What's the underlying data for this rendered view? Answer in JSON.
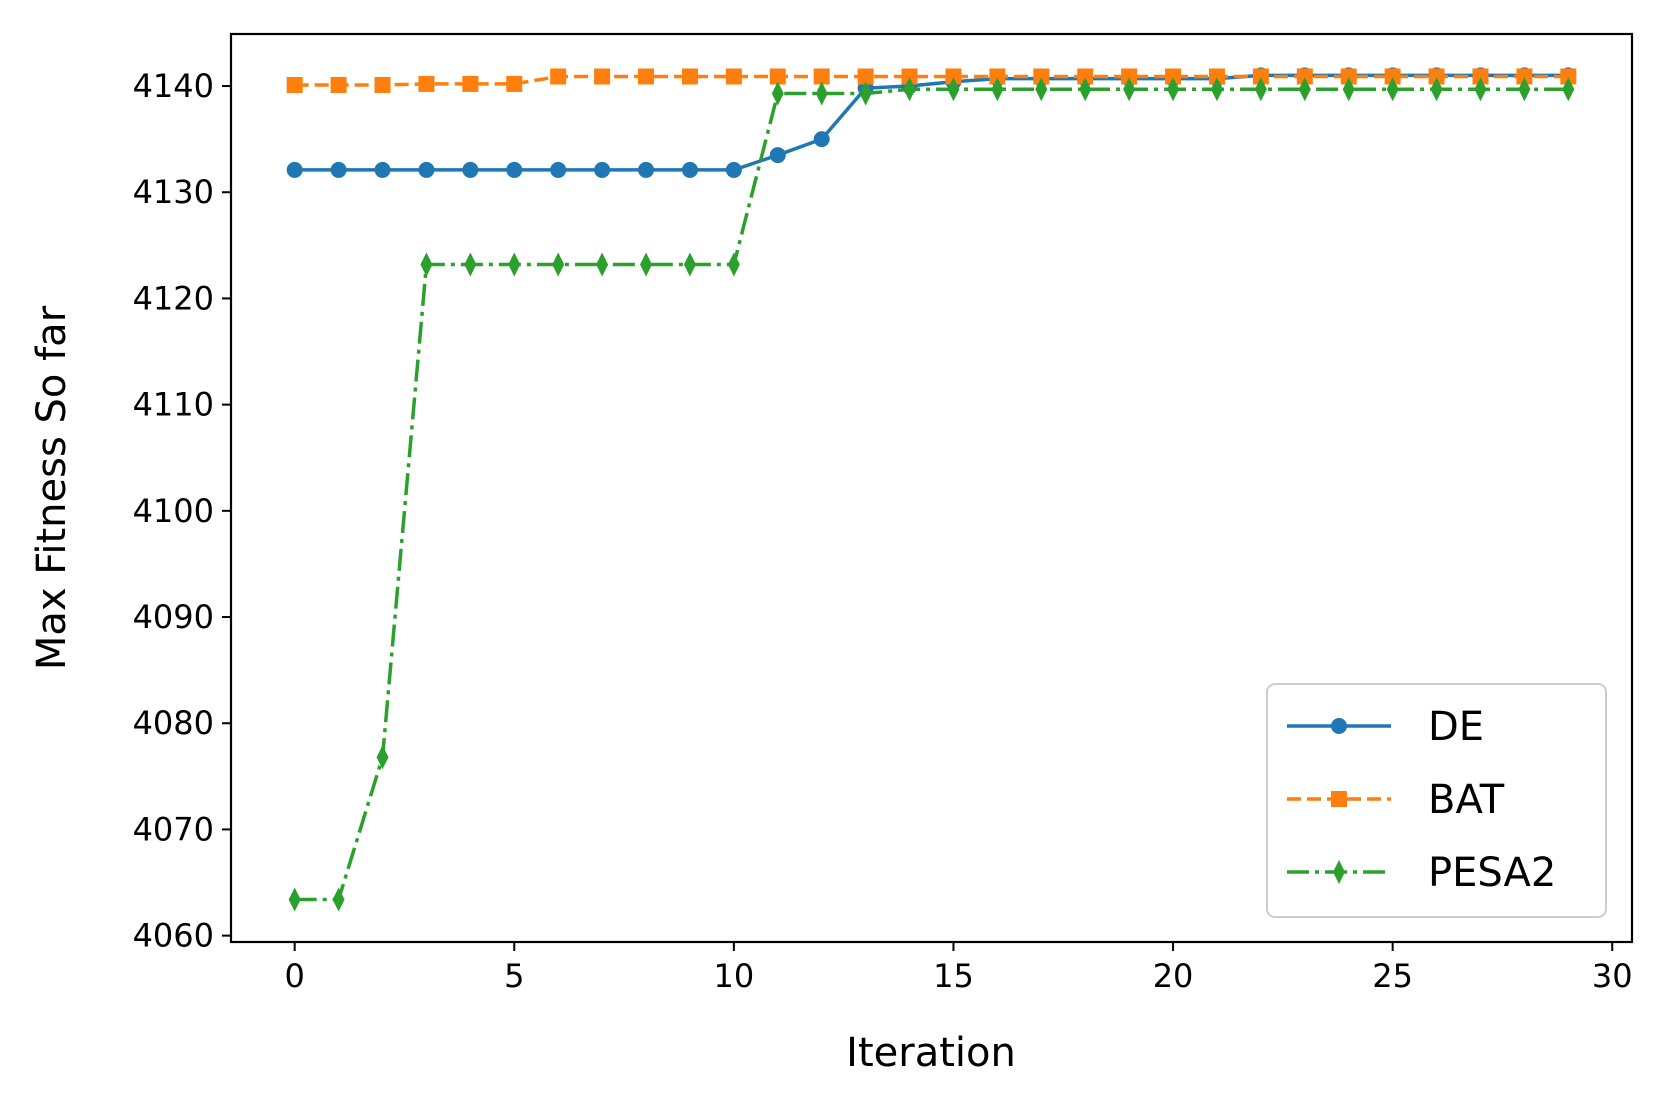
{
  "chart_data": {
    "type": "line",
    "title": "",
    "xlabel": "Iteration",
    "ylabel": "Max Fitness So far",
    "xlim": [
      -1.45,
      30.45
    ],
    "ylim": [
      4059.4,
      4144.9
    ],
    "xticks": [
      0,
      5,
      10,
      15,
      20,
      25,
      30
    ],
    "yticks": [
      4060,
      4070,
      4080,
      4090,
      4100,
      4110,
      4120,
      4130,
      4140
    ],
    "legend_position": "lower-right",
    "x": [
      0,
      1,
      2,
      3,
      4,
      5,
      6,
      7,
      8,
      9,
      10,
      11,
      12,
      13,
      14,
      15,
      16,
      17,
      18,
      19,
      20,
      21,
      22,
      23,
      24,
      25,
      26,
      27,
      28,
      29
    ],
    "series": [
      {
        "name": "DE",
        "color": "#1f77b4",
        "marker": "circle",
        "linestyle": "solid",
        "values": [
          4132.1,
          4132.1,
          4132.1,
          4132.1,
          4132.1,
          4132.1,
          4132.1,
          4132.1,
          4132.1,
          4132.1,
          4132.1,
          4133.5,
          4135.0,
          4139.8,
          4140.0,
          4140.4,
          4140.7,
          4140.7,
          4140.7,
          4140.7,
          4140.7,
          4140.7,
          4141.0,
          4141.0,
          4141.0,
          4141.0,
          4141.0,
          4141.0,
          4141.0,
          4141.0
        ]
      },
      {
        "name": "BAT",
        "color": "#ff7f0e",
        "marker": "square",
        "linestyle": "dashed",
        "values": [
          4140.1,
          4140.1,
          4140.1,
          4140.2,
          4140.2,
          4140.2,
          4140.9,
          4140.9,
          4140.9,
          4140.9,
          4140.9,
          4140.9,
          4140.9,
          4140.9,
          4140.9,
          4140.9,
          4140.9,
          4140.9,
          4140.9,
          4140.9,
          4140.9,
          4140.9,
          4140.9,
          4140.9,
          4140.9,
          4140.9,
          4140.9,
          4140.9,
          4140.9,
          4140.9
        ]
      },
      {
        "name": "PESA2",
        "color": "#2ca02c",
        "marker": "thin-diamond",
        "linestyle": "dashdot",
        "values": [
          4063.4,
          4063.4,
          4076.8,
          4123.2,
          4123.2,
          4123.2,
          4123.2,
          4123.2,
          4123.2,
          4123.2,
          4123.2,
          4139.3,
          4139.3,
          4139.3,
          4139.7,
          4139.7,
          4139.7,
          4139.7,
          4139.7,
          4139.7,
          4139.7,
          4139.7,
          4139.7,
          4139.7,
          4139.7,
          4139.7,
          4139.7,
          4139.7,
          4139.7,
          4139.7
        ]
      }
    ]
  }
}
